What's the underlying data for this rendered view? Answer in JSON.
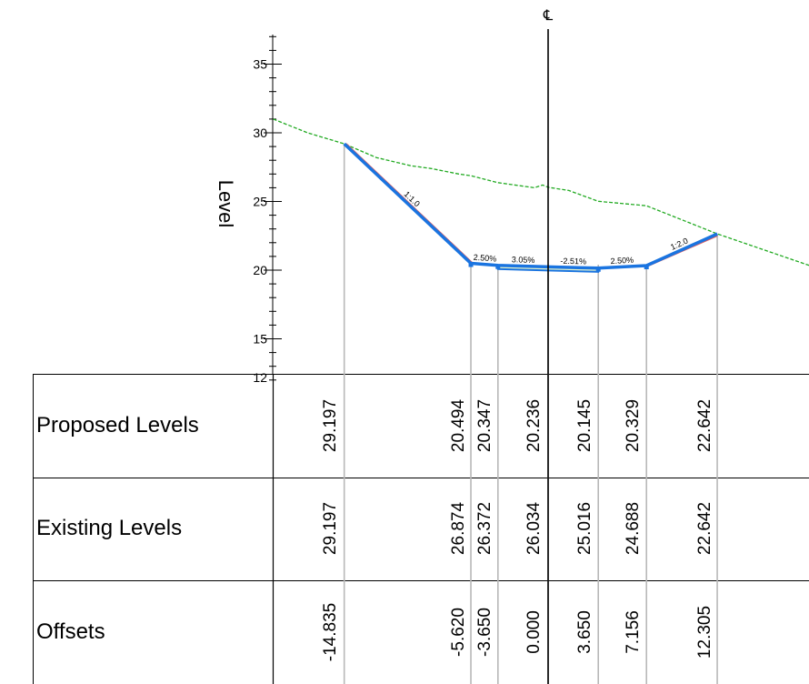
{
  "centerline_symbol": "℄",
  "axis": {
    "title": "Level",
    "ticks": [
      35,
      30,
      25,
      20,
      15
    ],
    "bottom_tick": "12",
    "ylim": [
      12,
      37.5
    ]
  },
  "colors": {
    "existing_ground": "#22aa22",
    "proposed_design": "#1a74e0",
    "batter_inner": "#e06060",
    "pavement_fill": "#e8f6cc",
    "grid": "#b8b8b8"
  },
  "existing_ground": [
    [
      -20,
      31.0
    ],
    [
      -17.5,
      30.0
    ],
    [
      -14.835,
      29.197
    ],
    [
      -12.5,
      28.2
    ],
    [
      -10.0,
      27.6
    ],
    [
      -8.5,
      27.4
    ],
    [
      -6.5,
      27.0
    ],
    [
      -5.62,
      26.874
    ],
    [
      -3.65,
      26.372
    ],
    [
      -1.0,
      26.0
    ],
    [
      -0.4,
      26.2
    ],
    [
      0.0,
      26.034
    ],
    [
      1.5,
      25.8
    ],
    [
      3.65,
      25.016
    ],
    [
      7.156,
      24.688
    ],
    [
      12.305,
      22.642
    ],
    [
      20.0,
      20.0
    ]
  ],
  "proposed_design": [
    [
      -14.835,
      29.197
    ],
    [
      -5.62,
      20.494
    ],
    [
      -3.65,
      20.347
    ],
    [
      0.0,
      20.236
    ],
    [
      3.65,
      20.145
    ],
    [
      7.156,
      20.329
    ],
    [
      12.305,
      22.642
    ]
  ],
  "slope_labels": [
    "1:1.0",
    "2.50%",
    "3.05%",
    "-2.51%",
    "2.50%",
    "1:2.0"
  ],
  "table": {
    "rows": [
      {
        "label": "Proposed Levels",
        "values": [
          "29.197",
          "20.494",
          "20.347",
          "20.236",
          "20.145",
          "20.329",
          "22.642"
        ]
      },
      {
        "label": "Existing Levels",
        "values": [
          "29.197",
          "26.874",
          "26.372",
          "26.034",
          "25.016",
          "24.688",
          "22.642"
        ]
      },
      {
        "label": "Offsets",
        "values": [
          "-14.835",
          "-5.620",
          "-3.650",
          "0.000",
          "3.650",
          "7.156",
          "12.305"
        ]
      }
    ]
  }
}
